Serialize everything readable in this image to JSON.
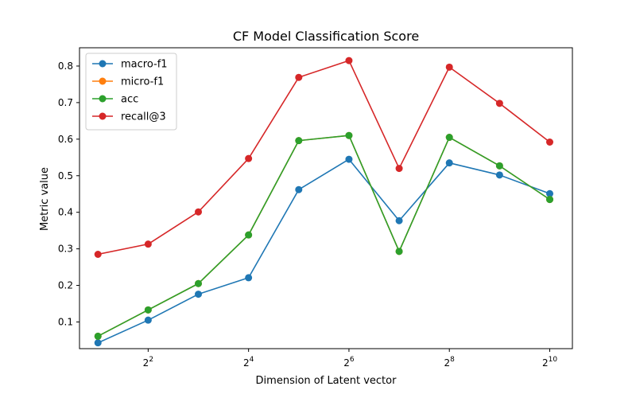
{
  "chart_data": {
    "type": "line",
    "title": "CF Model Classification Score",
    "xlabel": "Dimension of Latent vector",
    "ylabel": "Metric value",
    "xscale": "log2",
    "x": [
      2,
      4,
      8,
      16,
      32,
      64,
      128,
      256,
      512,
      1024
    ],
    "xlim": [
      1.55,
      1400
    ],
    "ylim": [
      0.027,
      0.85
    ],
    "x_ticks": [
      {
        "value": 4,
        "base": "2",
        "exp": "2"
      },
      {
        "value": 16,
        "base": "2",
        "exp": "4"
      },
      {
        "value": 64,
        "base": "2",
        "exp": "6"
      },
      {
        "value": 256,
        "base": "2",
        "exp": "8"
      },
      {
        "value": 1024,
        "base": "2",
        "exp": "10"
      }
    ],
    "y_ticks": [
      {
        "value": 0.1,
        "label": "0.1"
      },
      {
        "value": 0.2,
        "label": "0.2"
      },
      {
        "value": 0.3,
        "label": "0.3"
      },
      {
        "value": 0.4,
        "label": "0.4"
      },
      {
        "value": 0.5,
        "label": "0.5"
      },
      {
        "value": 0.6,
        "label": "0.6"
      },
      {
        "value": 0.7,
        "label": "0.7"
      },
      {
        "value": 0.8,
        "label": "0.8"
      }
    ],
    "grid": false,
    "legend_position": "top-left",
    "series": [
      {
        "name": "macro-f1",
        "color": "#1f77b4",
        "values": [
          0.043,
          0.105,
          0.176,
          0.221,
          0.462,
          0.545,
          0.377,
          0.535,
          0.502,
          0.451
        ]
      },
      {
        "name": "micro-f1",
        "color": "#ff7f0e",
        "values": [
          0.061,
          0.133,
          0.205,
          0.338,
          0.596,
          0.61,
          0.293,
          0.605,
          0.527,
          0.435
        ]
      },
      {
        "name": "acc",
        "color": "#2ca02c",
        "values": [
          0.061,
          0.133,
          0.205,
          0.338,
          0.596,
          0.61,
          0.293,
          0.605,
          0.527,
          0.435
        ]
      },
      {
        "name": "recall@3",
        "color": "#d62728",
        "values": [
          0.285,
          0.313,
          0.401,
          0.547,
          0.769,
          0.815,
          0.52,
          0.797,
          0.698,
          0.592
        ]
      }
    ]
  }
}
